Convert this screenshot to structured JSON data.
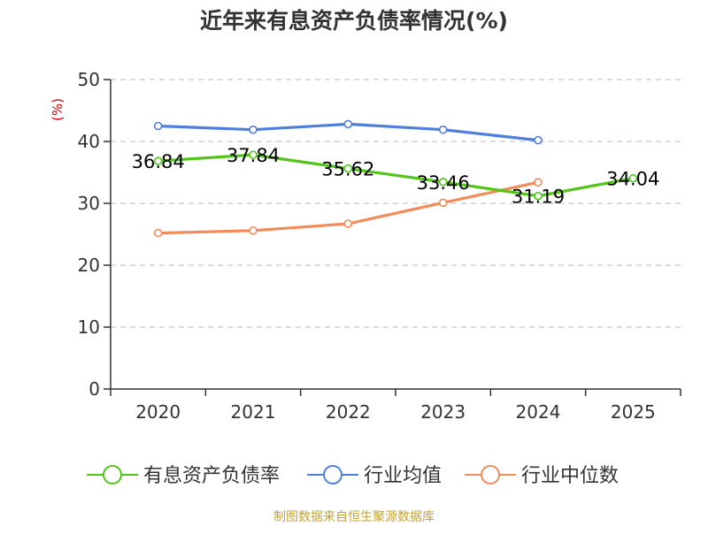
{
  "chart_data": {
    "type": "line",
    "title": "近年来有息资产负债率情况(%)",
    "ylabel": "(%)",
    "xlabel": "",
    "categories": [
      "2020",
      "2021",
      "2022",
      "2023",
      "2024",
      "2025"
    ],
    "ylim": [
      0,
      50
    ],
    "yticks": [
      0,
      10,
      20,
      30,
      40,
      50
    ],
    "grid": true,
    "legend_position": "bottom",
    "series": [
      {
        "name": "有息资产负债率",
        "color": "#52c41a",
        "values": [
          36.84,
          37.84,
          35.62,
          33.46,
          31.19,
          34.04
        ],
        "labels": [
          "36.84",
          "37.84",
          "35.62",
          "33.46",
          "31.19",
          "34.04"
        ]
      },
      {
        "name": "行业均值",
        "color": "#4f7fdc",
        "values": [
          42.5,
          41.9,
          42.8,
          41.9,
          40.2,
          null
        ]
      },
      {
        "name": "行业中位数",
        "color": "#f28c5a",
        "values": [
          25.2,
          25.6,
          26.7,
          30.1,
          33.4,
          null
        ]
      }
    ],
    "source": "制图数据来自恒生聚源数据库",
    "colors": {
      "title": "#333333",
      "ylabel": "#d40000",
      "axis": "#333333",
      "grid": "#c8c8c8",
      "source": "#c4a23a"
    }
  }
}
